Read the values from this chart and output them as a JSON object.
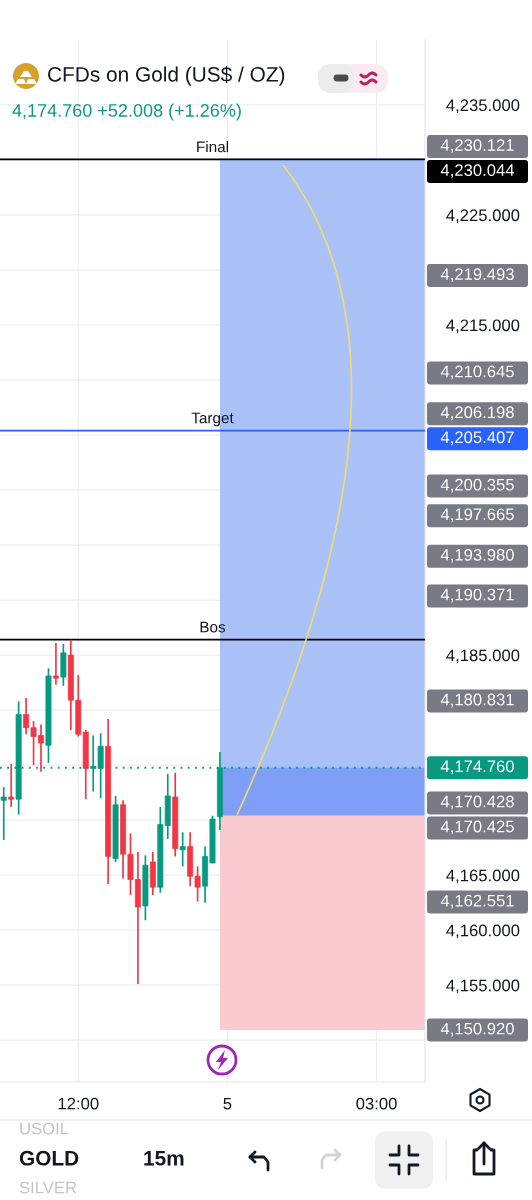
{
  "chart_data": {
    "type": "candlestick",
    "title": "CFDs on Gold (US$ / OZ)",
    "subtitle": "4,174.760 +52.008 (+1.26%)",
    "categories": [
      null,
      null,
      null,
      null,
      null,
      null,
      null,
      null,
      null,
      null,
      "12:00",
      null,
      null,
      null,
      null,
      null,
      null,
      null,
      null,
      null,
      null,
      null,
      null,
      null,
      null,
      null,
      null,
      null,
      null,
      null,
      "5",
      null,
      null,
      null,
      null,
      null,
      null,
      null,
      null,
      null,
      null,
      null,
      null,
      null,
      null,
      null,
      null,
      null,
      null,
      null,
      "03:00",
      null,
      null,
      null,
      null,
      null,
      null
    ],
    "ohlc": [
      [
        4171.8,
        4173.0,
        4168.2,
        4172.1
      ],
      [
        4172.1,
        4175.1,
        4171.2,
        4171.9
      ],
      [
        4171.9,
        4180.8,
        4170.5,
        4179.6
      ],
      [
        4179.6,
        4181.1,
        4177.8,
        4178.4
      ],
      [
        4178.4,
        4179.0,
        4175.0,
        4177.6
      ],
      [
        4177.7,
        4178.7,
        4174.4,
        4177.0
      ],
      [
        4176.8,
        4183.8,
        4175.2,
        4183.1
      ],
      [
        4183.1,
        4186.1,
        4182.3,
        4182.9
      ],
      [
        4183.0,
        4186.0,
        4182.2,
        4185.2
      ],
      [
        4185.0,
        4186.4,
        4178.2,
        4180.9
      ],
      [
        4180.9,
        4183.2,
        4177.6,
        4177.8
      ],
      [
        4178.0,
        4178.2,
        4171.9,
        4174.7
      ],
      [
        4174.7,
        4177.7,
        4172.6,
        4174.9
      ],
      [
        4174.7,
        4177.9,
        4172.0,
        4176.7
      ],
      [
        4176.7,
        4179.2,
        4164.2,
        4166.7
      ],
      [
        4166.5,
        4172.2,
        4166.2,
        4171.4
      ],
      [
        4171.4,
        4171.8,
        4164.7,
        4166.9
      ],
      [
        4166.9,
        4168.8,
        4163.2,
        4164.6
      ],
      [
        4164.6,
        4167.1,
        4155.1,
        4162.1
      ],
      [
        4162.2,
        4166.8,
        4160.9,
        4165.9
      ],
      [
        4166.2,
        4167.1,
        4163.2,
        4163.9
      ],
      [
        4163.9,
        4171.2,
        4163.4,
        4169.6
      ],
      [
        4169.5,
        4174.2,
        4168.3,
        4172.2
      ],
      [
        4172.1,
        4174.3,
        4166.7,
        4167.4
      ],
      [
        4167.3,
        4168.9,
        4165.8,
        4167.6
      ],
      [
        4167.6,
        4168.9,
        4164.0,
        4164.9
      ],
      [
        4164.9,
        4165.8,
        4162.6,
        4163.9
      ],
      [
        4164.0,
        4167.6,
        4162.5,
        4166.7
      ],
      [
        4166.1,
        4170.4,
        4166.1,
        4170.1
      ],
      [
        4170.3,
        4176.2,
        4169.1,
        4174.76
      ],
      null,
      null,
      null,
      null,
      null,
      null,
      null,
      null,
      null,
      null,
      null,
      null,
      null,
      null,
      null,
      null,
      null,
      null,
      null,
      null,
      null,
      null,
      null,
      null,
      null,
      null,
      null
    ],
    "colors": [
      "#089981",
      "#f23645",
      "#089981",
      "#f23645",
      "#f23645",
      "#f23645",
      "#089981",
      "#f23645",
      "#089981",
      "#f23645",
      "#f23645",
      "#f23645",
      "#089981",
      "#089981",
      "#f23645",
      "#089981",
      "#f23645",
      "#f23645",
      "#f23645",
      "#089981",
      "#f23645",
      "#089981",
      "#089981",
      "#f23645",
      "#089981",
      "#f23645",
      "#f23645",
      "#089981",
      "#089981",
      "#089981",
      null,
      null,
      null,
      null,
      null,
      null,
      null,
      null,
      null,
      null,
      null,
      null,
      null,
      null,
      null,
      null,
      null,
      null,
      null,
      null,
      null,
      null,
      null,
      null,
      null,
      null,
      null
    ],
    "ylim": [
      4146.2,
      4240.9
    ],
    "yticks": [
      {
        "value": 4150,
        "label": null
      },
      {
        "value": 4155,
        "label": "4,155.000"
      },
      {
        "value": 4160,
        "label": "4,160.000"
      },
      {
        "value": 4165,
        "label": "4,165.000"
      },
      {
        "value": 4170,
        "label": null
      },
      {
        "value": 4175,
        "label": null
      },
      {
        "value": 4180,
        "label": null
      },
      {
        "value": 4185,
        "label": "4,185.000"
      },
      {
        "value": 4190,
        "label": null
      },
      {
        "value": 4195,
        "label": null
      },
      {
        "value": 4200,
        "label": null
      },
      {
        "value": 4205,
        "label": null
      },
      {
        "value": 4210,
        "label": null
      },
      {
        "value": 4215,
        "label": "4,215.000"
      },
      {
        "value": 4220,
        "label": null
      },
      {
        "value": 4225,
        "label": "4,225.000"
      },
      {
        "value": 4230,
        "label": null
      },
      {
        "value": 4235,
        "label": "4,235.000"
      }
    ],
    "grid": true,
    "bands": [
      {
        "axis": "y",
        "from": 4170.428,
        "to": 4230.121,
        "color": "#aac1f8"
      },
      {
        "axis": "y",
        "from": 4150.92,
        "to": 4170.425,
        "color": "#f9cbce"
      },
      {
        "axis": "y",
        "from": 4170.428,
        "to": 4174.76,
        "color": "#7f9ff6"
      }
    ],
    "ref_lines": [
      {
        "axis": "y",
        "value": 4230.044,
        "label": "Final",
        "color": "#000000",
        "line_style": "solid"
      },
      {
        "axis": "y",
        "value": 4205.407,
        "label": "Target",
        "color": "#2962ff",
        "line_style": "solid"
      },
      {
        "axis": "y",
        "value": 4186.4,
        "label": "Bos",
        "color": "#000000",
        "line_style": "solid"
      },
      {
        "axis": "y",
        "value": 4174.76,
        "color": "#089981",
        "line_style": "dotted"
      }
    ],
    "annotations": [
      "4,230.121",
      "4,230.044",
      "4,219.493",
      "4,210.645",
      "4,206.198",
      "4,205.407",
      "4,200.355",
      "4,197.665",
      "4,193.980",
      "4,190.371",
      "4,180.831",
      "4,174.760",
      "4,170.428",
      "4,170.425",
      "4,162.551",
      "4,150.920",
      "USOIL",
      "GOLD",
      "15m",
      "SILVER"
    ]
  }
}
